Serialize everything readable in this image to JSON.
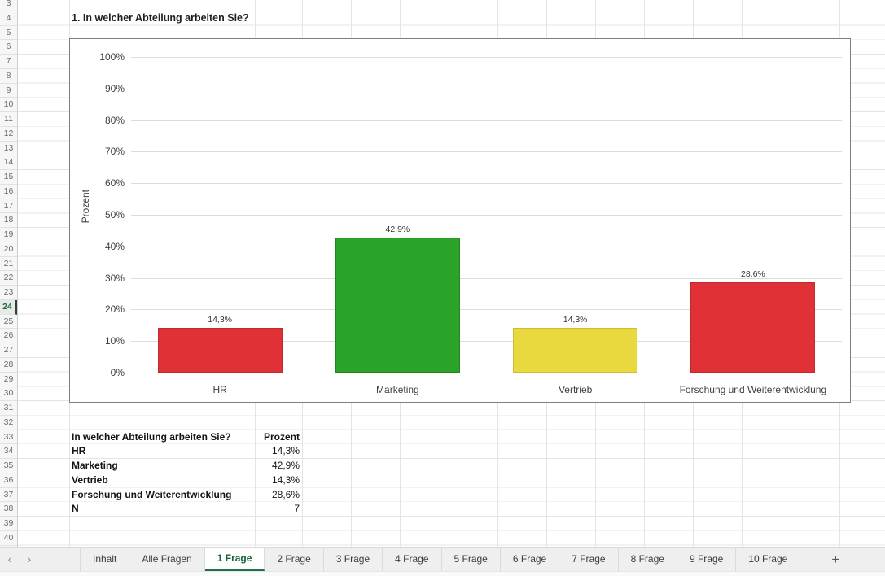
{
  "title_cell": "1. In welcher Abteilung arbeiten Sie?",
  "grid": {
    "row_numbers": [
      "3",
      "4",
      "5",
      "6",
      "7",
      "8",
      "9",
      "10",
      "11",
      "12",
      "13",
      "14",
      "15",
      "16",
      "17",
      "18",
      "19",
      "20",
      "21",
      "22",
      "23",
      "24",
      "25",
      "26",
      "27",
      "28",
      "29",
      "30",
      "31",
      "32",
      "33",
      "34",
      "35",
      "36",
      "37",
      "38",
      "39",
      "40"
    ],
    "selected_row": "24"
  },
  "chart_data": {
    "type": "bar",
    "title": "",
    "ylabel": "Prozent",
    "ylim": [
      0,
      100
    ],
    "ytick_labels": [
      "100%",
      "90%",
      "80%",
      "70%",
      "60%",
      "50%",
      "40%",
      "30%",
      "20%",
      "10%",
      "0%"
    ],
    "categories": [
      "HR",
      "Marketing",
      "Vertrieb",
      "Forschung und Weiterentwicklung"
    ],
    "values": [
      14.3,
      42.9,
      14.3,
      28.6
    ],
    "value_labels": [
      "14,3%",
      "42,9%",
      "14,3%",
      "28,6%"
    ],
    "bar_colors": [
      "#e03236",
      "#29a329",
      "#e9d83e",
      "#e03236"
    ],
    "bar_border_colors": [
      "#bf2a2d",
      "#1f871f",
      "#cdbd30",
      "#bf2a2d"
    ],
    "grid": true,
    "legend": false
  },
  "table": {
    "headers": [
      "In welcher Abteilung arbeiten Sie?",
      "Prozent"
    ],
    "rows": [
      [
        "HR",
        "14,3%"
      ],
      [
        "Marketing",
        "42,9%"
      ],
      [
        "Vertrieb",
        "14,3%"
      ],
      [
        "Forschung und Weiterentwicklung",
        "28,6%"
      ],
      [
        "N",
        "7"
      ]
    ]
  },
  "sheet_tabs": {
    "nav_left": "‹",
    "nav_right": "›",
    "tabs": [
      "Inhalt",
      "Alle Fragen",
      "1 Frage",
      "2 Frage",
      "3 Frage",
      "4 Frage",
      "5 Frage",
      "6 Frage",
      "7 Frage",
      "8 Frage",
      "9 Frage",
      "10 Frage"
    ],
    "active": "1 Frage",
    "add_label": "+"
  }
}
